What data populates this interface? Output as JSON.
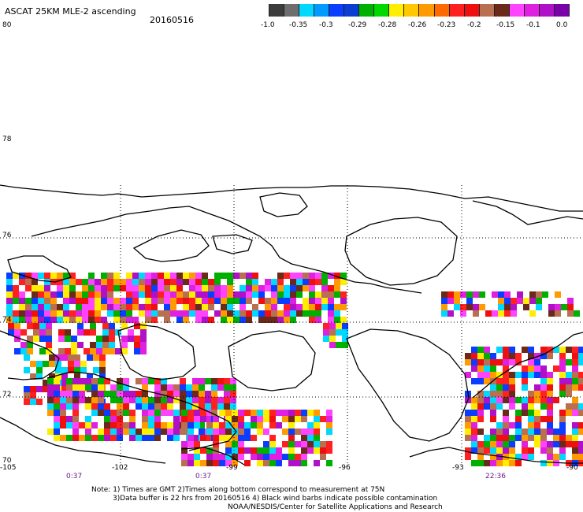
{
  "header": {
    "title": "ASCAT 25KM MLE-2 ascending",
    "date": "20160516"
  },
  "colorbar": {
    "colors": [
      "#3c3c3c",
      "#6e6e6e",
      "#00d8ff",
      "#009bff",
      "#0a3dff",
      "#0a3dd0",
      "#00b000",
      "#00d800",
      "#ffee00",
      "#ffc800",
      "#ff9a00",
      "#ff6a00",
      "#ff2020",
      "#ee1010",
      "#b87050",
      "#6a2a1a",
      "#ff44ff",
      "#e020e0",
      "#b010c8",
      "#7a00aa"
    ],
    "ticks": [
      "-1.0",
      "-0.35",
      "-0.3",
      "-0.29",
      "-0.28",
      "-0.26",
      "-0.23",
      "-0.2",
      "-0.15",
      "-0.1",
      "0.0"
    ]
  },
  "lat_labels": [
    "80",
    "78",
    "76",
    "74",
    "72",
    "70"
  ],
  "lon_labels": [
    "-105",
    "-102",
    "-99",
    "-96",
    "-93",
    "-90"
  ],
  "time_labels": [
    "0:37",
    "0:37",
    "22:36"
  ],
  "notes": [
    "Note: 1) Times are GMT 2)Times along bottom correspond to measurement at 75N",
    "3)Data buffer is 22 hrs from 20160516 4) Black wind barbs indicate possible contamination",
    "NOAA/NESDIS/Center for Satellite Applications and Research"
  ],
  "palette": [
    "#ff2020",
    "#ff9a00",
    "#ffee00",
    "#b010c8",
    "#ff44ff",
    "#00b000",
    "#0a3dff",
    "#6a2a1a",
    "#b87050",
    "#00d8ff",
    "#ee1010",
    "#e020e0"
  ]
}
